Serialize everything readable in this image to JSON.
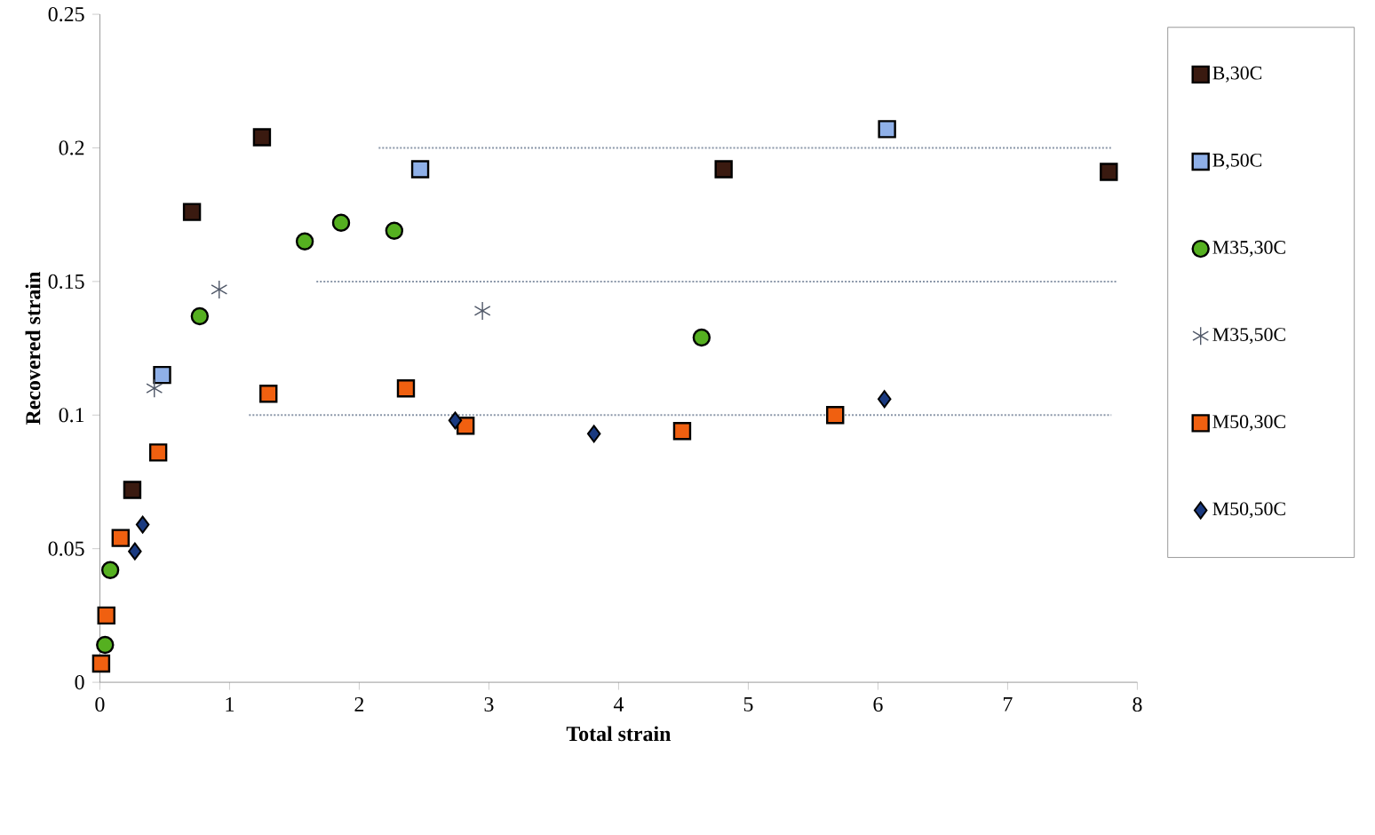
{
  "chart_data": {
    "type": "scatter",
    "xlabel": "Total strain",
    "ylabel": "Recovered strain",
    "xlim": [
      0,
      8
    ],
    "ylim": [
      0,
      0.25
    ],
    "xticks": [
      0,
      1,
      2,
      3,
      4,
      5,
      6,
      7,
      8
    ],
    "yticks": [
      0,
      0.05,
      0.1,
      0.15,
      0.2,
      0.25
    ],
    "grid": false,
    "legend": "right",
    "series": [
      {
        "name": "B,30C",
        "color": "#3a1a10",
        "marker": "square",
        "x": [
          0.25,
          0.71,
          1.25,
          4.81,
          7.78
        ],
        "values": [
          0.072,
          0.176,
          0.204,
          0.192,
          0.191
        ]
      },
      {
        "name": "B,50C",
        "color": "#8fb0e8",
        "marker": "square",
        "x": [
          0.48,
          2.47,
          6.07
        ],
        "values": [
          0.115,
          0.192,
          0.207
        ]
      },
      {
        "name": "M35,30C",
        "color": "#55b020",
        "marker": "circle",
        "x": [
          0.04,
          0.08,
          0.77,
          1.58,
          1.86,
          2.27,
          4.64
        ],
        "values": [
          0.014,
          0.042,
          0.137,
          0.165,
          0.172,
          0.169,
          0.129
        ]
      },
      {
        "name": "M35,50C",
        "color": "#505868",
        "marker": "cross",
        "x": [
          0.42,
          0.92,
          2.95
        ],
        "values": [
          0.11,
          0.147,
          0.139
        ]
      },
      {
        "name": "M50,30C",
        "color": "#f06010",
        "marker": "square",
        "x": [
          0.01,
          0.05,
          0.16,
          0.45,
          1.3,
          2.36,
          2.82,
          4.49,
          5.67
        ],
        "values": [
          0.007,
          0.025,
          0.054,
          0.086,
          0.108,
          0.11,
          0.096,
          0.094,
          0.1
        ]
      },
      {
        "name": "M50,50C",
        "color": "#1a3a80",
        "marker": "diamond",
        "x": [
          0.27,
          0.33,
          2.74,
          3.81,
          6.05
        ],
        "values": [
          0.049,
          0.059,
          0.098,
          0.093,
          0.106
        ]
      },
      {
        "type": "line",
        "color": "#8a96a8",
        "line_style": "dotted",
        "marker": "none",
        "x": [
          2.15,
          7.8
        ],
        "values": [
          0.2,
          0.2
        ]
      },
      {
        "type": "line",
        "color": "#8a96a8",
        "line_style": "dotted",
        "marker": "none",
        "x": [
          1.67,
          7.85
        ],
        "values": [
          0.15,
          0.15
        ]
      },
      {
        "type": "line",
        "color": "#8a96a8",
        "line_style": "dotted",
        "marker": "none",
        "x": [
          1.15,
          7.8
        ],
        "values": [
          0.1,
          0.1
        ]
      }
    ]
  }
}
